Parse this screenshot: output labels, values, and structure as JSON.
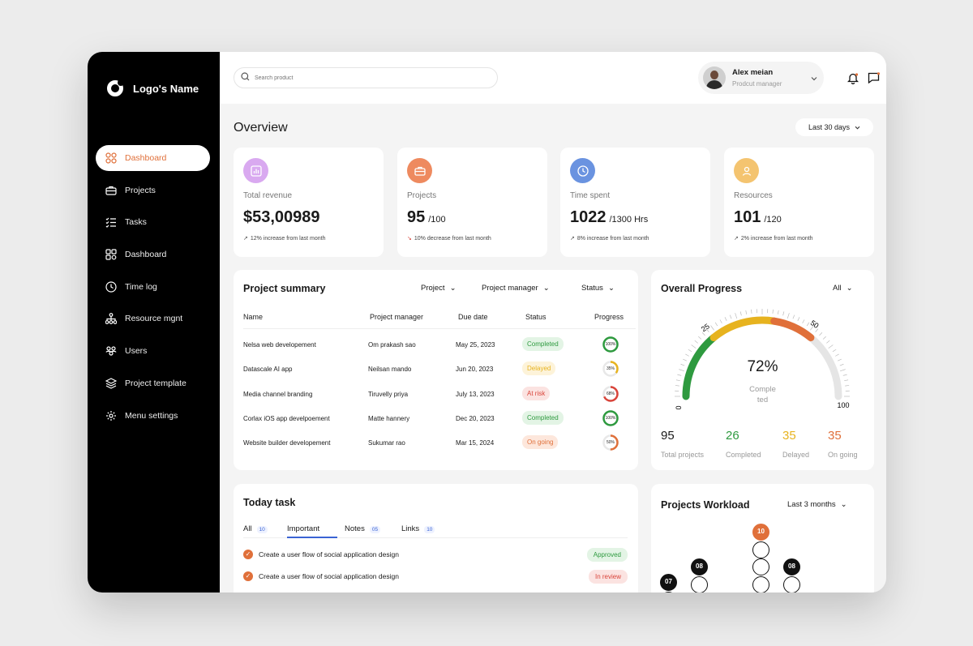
{
  "logo": {
    "text": "Logo's Name"
  },
  "sidebar": {
    "items": [
      {
        "label": "Dashboard",
        "icon": "grid-icon",
        "active": true
      },
      {
        "label": "Projects",
        "icon": "briefcase-icon"
      },
      {
        "label": "Tasks",
        "icon": "checklist-icon"
      },
      {
        "label": "Dashboard",
        "icon": "settings-grid-icon"
      },
      {
        "label": "Time log",
        "icon": "clock-icon"
      },
      {
        "label": "Resource mgnt",
        "icon": "hierarchy-icon"
      },
      {
        "label": "Users",
        "icon": "users-icon"
      },
      {
        "label": "Project template",
        "icon": "layers-icon"
      },
      {
        "label": "Menu settings",
        "icon": "gear-icon"
      }
    ]
  },
  "header": {
    "search_placeholder": "Search product",
    "user_name": "Alex meian",
    "user_role": "Prodcut manager"
  },
  "overview": {
    "title": "Overview",
    "range": "Last 30 days"
  },
  "stats": [
    {
      "label": "Total revenue",
      "value": "$53,00989",
      "sub": "",
      "trend": "12% increase from last month",
      "color": "#d9a9f0",
      "icon": "bar-chart-icon",
      "direction": "up"
    },
    {
      "label": "Projects",
      "value": "95",
      "sub": "/100",
      "trend": "10% decrease from last month",
      "color": "#ee8a5f",
      "icon": "briefcase-icon",
      "direction": "down"
    },
    {
      "label": "Time spent",
      "value": "1022",
      "sub": "/1300 Hrs",
      "trend": "8% increase from last month",
      "color": "#6a93e0",
      "icon": "clock-icon",
      "direction": "up"
    },
    {
      "label": "Resources",
      "value": "101",
      "sub": "/120",
      "trend": "2% increase from last month",
      "color": "#f4c470",
      "icon": "user-icon",
      "direction": "up"
    }
  ],
  "project_summary": {
    "title": "Project summary",
    "filters": [
      "Project",
      "Project manager",
      "Status"
    ],
    "columns": [
      "Name",
      "Project manager",
      "Due date",
      "Status",
      "Progress"
    ],
    "rows": [
      {
        "name": "Nelsa web developement",
        "manager": "Om prakash sao",
        "due": "May 25, 2023",
        "status": "Completed",
        "progress": "100%",
        "progress_value": 100
      },
      {
        "name": "Datascale AI app",
        "manager": "Neilsan mando",
        "due": "Jun 20, 2023",
        "status": "Delayed",
        "progress": "35%",
        "progress_value": 35
      },
      {
        "name": "Media channel branding",
        "manager": "Tiruvelly priya",
        "due": "July 13, 2023",
        "status": "At risk",
        "progress": "68%",
        "progress_value": 68
      },
      {
        "name": "Corlax iOS app develpoement",
        "manager": "Matte hannery",
        "due": "Dec 20, 2023",
        "status": "Completed",
        "progress": "100%",
        "progress_value": 100
      },
      {
        "name": "Website builder developement",
        "manager": "Sukumar rao",
        "due": "Mar 15, 2024",
        "status": "On going",
        "progress": "50%",
        "progress_value": 50
      }
    ]
  },
  "overall_progress": {
    "title": "Overall Progress",
    "filter": "All",
    "percent": "72%",
    "percent_value": 72,
    "caption_line1": "Comple",
    "caption_line2": "ted",
    "ticks": [
      "0",
      "25",
      "50",
      "100"
    ],
    "totals": [
      {
        "value": "95",
        "label": "Total projects",
        "color": "#1a1a1a"
      },
      {
        "value": "26",
        "label": "Completed",
        "color": "#2e9a3f"
      },
      {
        "value": "35",
        "label": "Delayed",
        "color": "#e7b31f"
      },
      {
        "value": "35",
        "label": "On going",
        "color": "#e0703a"
      }
    ]
  },
  "today_task": {
    "title": "Today task",
    "tabs": [
      {
        "label": "All",
        "count": "10"
      },
      {
        "label": "Important",
        "count": ""
      },
      {
        "label": "Notes",
        "count": "05"
      },
      {
        "label": "Links",
        "count": "10"
      }
    ],
    "tasks": [
      {
        "text": "Create a user flow of social application design",
        "status": "Approved"
      },
      {
        "text": "Create a user flow of social application design",
        "status": "In review"
      }
    ]
  },
  "workload": {
    "title": "Projects Workload",
    "filter": "Last 3 months",
    "labels": [
      "07",
      "08",
      "10",
      "08"
    ]
  },
  "colors": {
    "accent": "#e0703a",
    "sidebar": "#000000"
  }
}
